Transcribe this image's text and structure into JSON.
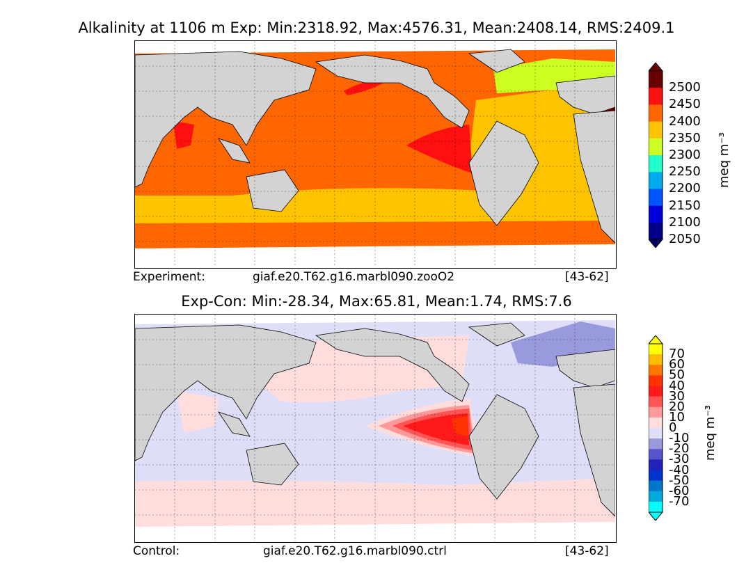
{
  "top_panel": {
    "title": "Alkalinity at 1106 m Exp: Min:2318.92, Max:4576.31, Mean:2408.14, RMS:2409.1",
    "footer_label": "Experiment:",
    "footer_case": "giaf.e20.T62.g16.marbl090.zooO2",
    "footer_years": "[43-62]",
    "colorbar": {
      "ticks": [
        "2500",
        "2450",
        "2400",
        "2350",
        "2300",
        "2250",
        "2200",
        "2150",
        "2100",
        "2050"
      ],
      "colors": [
        "#6b0000",
        "#ff1010",
        "#ff6600",
        "#ffc400",
        "#ccff22",
        "#22ffcc",
        "#00aaee",
        "#0055ff",
        "#0000dd",
        "#000088"
      ],
      "over_color": "#6b0000",
      "under_color": "#000060",
      "units": "meq m⁻³"
    }
  },
  "bottom_panel": {
    "title": "Exp-Con: Min:-28.34, Max:65.81, Mean:1.74, RMS:7.6",
    "footer_label": "Control:",
    "footer_case": "giaf.e20.T62.g16.marbl090.ctrl",
    "footer_years": "[43-62]",
    "colorbar": {
      "ticks": [
        "70",
        "60",
        "50",
        "40",
        "30",
        "20",
        "10",
        "0",
        "-10",
        "-20",
        "-30",
        "-40",
        "-50",
        "-60",
        "-70"
      ],
      "colors": [
        "#ffff00",
        "#ffbb00",
        "#ff7700",
        "#ff3300",
        "#ff1a1a",
        "#ff5555",
        "#ff9999",
        "#ffdddd",
        "#dedef8",
        "#9999dd",
        "#5555cc",
        "#2222bb",
        "#0033cc",
        "#0077cc",
        "#00aadd",
        "#00ffff"
      ],
      "over_color": "#ffff00",
      "under_color": "#00ffff",
      "units": "meq m⁻³"
    }
  }
}
